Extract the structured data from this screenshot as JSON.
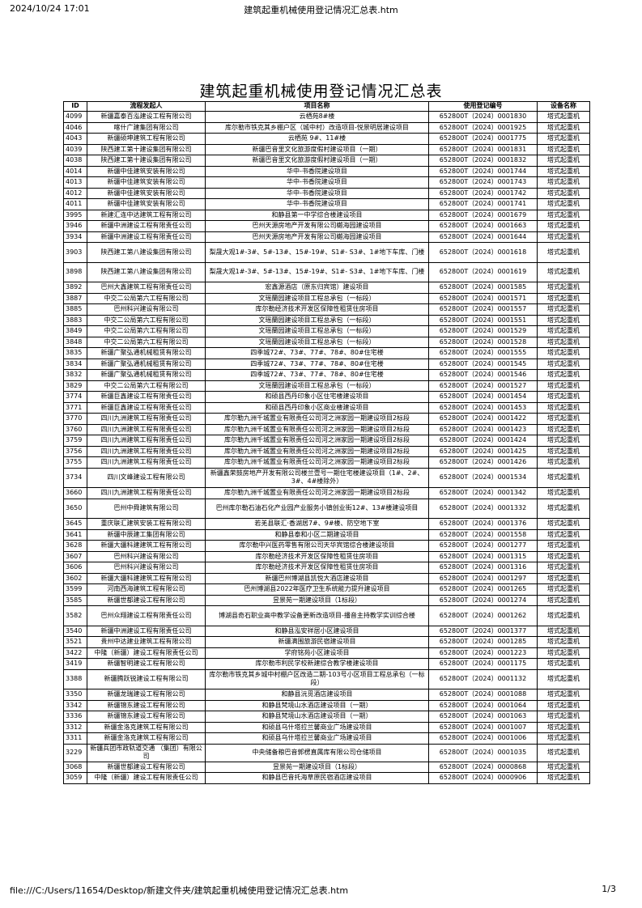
{
  "browser_header": {
    "datetime": "2024/10/24 17:01",
    "page_title": "建筑起重机械使用登记情况汇总表.htm"
  },
  "browser_footer": {
    "url": "file:///C:/Users/11654/Desktop/新建文件夹/建筑起重机械使用登记情况汇总表.htm",
    "page": "1/3"
  },
  "title": "建筑起重机械使用登记情况汇总表",
  "table": {
    "headers": [
      "ID",
      "流程发起人",
      "项目名称",
      "使用登记编号",
      "设备名称"
    ],
    "rows": [
      [
        "4099",
        "新疆嘉泰百泓建设工程有限公司",
        "云栖苑8#楼",
        "652800T（2024）0001830",
        "塔式起重机"
      ],
      [
        "4046",
        "喀什广建集团有限公司",
        "库尔勒市铁克其乡棚户区（城中村）改造项目-悦景明居建设项目",
        "652800T（2024）0001925",
        "塔式起重机"
      ],
      [
        "4043",
        "新疆硕坤建筑工程有限公司",
        "云栖苑 9#、11#楼",
        "652800T（2024）0001775",
        "塔式起重机"
      ],
      [
        "4039",
        "陕西建工第十建设集团有限公司",
        "新疆巴音里文化旅游度假村建设项目（一期）",
        "652800T（2024）0001831",
        "塔式起重机"
      ],
      [
        "4038",
        "陕西建工第十建设集团有限公司",
        "新疆巴音里文化旅游度假村建设项目（一期）",
        "652800T（2024）0001832",
        "塔式起重机"
      ],
      [
        "4014",
        "新疆中佳建筑安装有限公司",
        "华中-书香院建设项目",
        "652800T（2024）0001744",
        "塔式起重机"
      ],
      [
        "4013",
        "新疆中佳建筑安装有限公司",
        "华中-书香院建设项目",
        "652800T（2024）0001743",
        "塔式起重机"
      ],
      [
        "4012",
        "新疆中佳建筑安装有限公司",
        "华中-书香院建设项目",
        "652800T（2024）0001742",
        "塔式起重机"
      ],
      [
        "4011",
        "新疆中佳建筑安装有限公司",
        "华中-书香院建设项目",
        "652800T（2024）0001741",
        "塔式起重机"
      ],
      [
        "3995",
        "新建汇连中达建筑工程有限公司",
        "和静县第一中学综合楼建设项目",
        "652800T（2024）0001679",
        "塔式起重机"
      ],
      [
        "3946",
        "新疆中洲建设工程有限责任公司",
        "巴州天源房地产开发有限公司樾海园建设项目",
        "652800T（2024）0001663",
        "塔式起重机"
      ],
      [
        "3934",
        "新疆中洲建设工程有限责任公司",
        "巴州天源房地产开发有限公司樾海园建设项目",
        "652800T（2024）0001644",
        "塔式起重机"
      ],
      [
        "3903",
        "陕西建工第八建设集团有限公司",
        "梨晟大观1#-3#、5#-13#、15#-19#、S1#- S3#、1#地下车库、门楼",
        "652800T（2024）0001618",
        "塔式起重机"
      ],
      [
        "3898",
        "陕西建工第八建设集团有限公司",
        "梨晟大观1#-3#、5#-13#、15#-19#、S1#- S3#、1#地下车库、门楼",
        "652800T（2024）0001619",
        "塔式起重机"
      ],
      [
        "3892",
        "巴州大鑫建筑工程有限责任公司",
        "宏鑫源酒店（原东归宾馆）建设项目",
        "652800T（2024）0001585",
        "塔式起重机"
      ],
      [
        "3887",
        "中交二公局第六工程有限公司",
        "文瑶蘭园建设项目工程总承包（一标段）",
        "652800T（2024）0001571",
        "塔式起重机"
      ],
      [
        "3885",
        "巴州科兴建设有限公司",
        "库尔勒经济技术开发区保障性租赁住房项目",
        "652800T（2024）0001557",
        "塔式起重机"
      ],
      [
        "3883",
        "中交二公局第六工程有限公司",
        "文瑶蘭园建设项目工程总承包（一标段）",
        "652800T（2024）0001551",
        "塔式起重机"
      ],
      [
        "3849",
        "中交二公局第六工程有限公司",
        "文瑶蘭园建设项目工程总承包（一标段）",
        "652800T（2024）0001529",
        "塔式起重机"
      ],
      [
        "3848",
        "中交二公局第六工程有限公司",
        "文瑶蘭园建设项目工程总承包（一标段）",
        "652800T（2024）0001528",
        "塔式起重机"
      ],
      [
        "3835",
        "新疆广聚弘通机械租赁有限公司",
        "四季城72#、73#、77#、78#、80#住宅楼",
        "652800T（2024）0001555",
        "塔式起重机"
      ],
      [
        "3834",
        "新疆广聚弘通机械租赁有限公司",
        "四季城72#、73#、77#、78#、80#住宅楼",
        "652800T（2024）0001545",
        "塔式起重机"
      ],
      [
        "3832",
        "新疆广聚弘通机械租赁有限公司",
        "四季城72#、73#、77#、78#、80#住宅楼",
        "652800T（2024）0001546",
        "塔式起重机"
      ],
      [
        "3829",
        "中交二公局第六工程有限公司",
        "文瑶蘭园建设项目工程总承包（一标段）",
        "652800T（2024）0001527",
        "塔式起重机"
      ],
      [
        "3774",
        "新疆巨鑫建设工程有限责任公司",
        "和硕县西丹印象小区住宅楼建设项目",
        "652800T（2024）0001454",
        "塔式起重机"
      ],
      [
        "3771",
        "新疆巨鑫建设工程有限责任公司",
        "和硕县西丹印象小区商业楼建设项目",
        "652800T（2024）0001453",
        "塔式起重机"
      ],
      [
        "3770",
        "四川九洲建筑工程有限责任公司",
        "库尔勒九洲千城置业有限责任公司河之洲家园一期建设项目2标段",
        "652800T（2024）0001422",
        "塔式起重机"
      ],
      [
        "3760",
        "四川九洲建筑工程有限责任公司",
        "库尔勒九洲千城置业有限责任公司河之洲家园一期建设项目2标段",
        "652800T（2024）0001423",
        "塔式起重机"
      ],
      [
        "3759",
        "四川九洲建筑工程有限责任公司",
        "库尔勒九洲千城置业有限责任公司河之洲家园一期建设项目2标段",
        "652800T（2024）0001424",
        "塔式起重机"
      ],
      [
        "3756",
        "四川九洲建筑工程有限责任公司",
        "库尔勒九洲千城置业有限责任公司河之洲家园一期建设项目2标段",
        "652800T（2024）0001425",
        "塔式起重机"
      ],
      [
        "3755",
        "四川九洲建筑工程有限责任公司",
        "库尔勒九洲千城置业有限责任公司河之洲家园一期建设项目2标段",
        "652800T（2024）0001426",
        "塔式起重机"
      ],
      [
        "3734",
        "四川文峰建设工程有限公司",
        "新疆鑫荣鼓房地产开发有限公司楼兰壹号一期住宅楼建设项目（1#、2#、3#、4#楼除外）",
        "652800T（2024）0001534",
        "塔式起重机"
      ],
      [
        "3660",
        "四川九洲建筑工程有限责任公司",
        "库尔勒九洲千城置业有限责任公司河之洲家园一期建设项目2标段",
        "652800T（2024）0001342",
        "塔式起重机"
      ],
      [
        "3650",
        "巴州中舜建筑有限公司",
        "巴州库尔勒石油石化产业园产业服务小镇创业街12#、13#楼建设项目",
        "652800T（2024）0001332",
        "塔式起重机"
      ],
      [
        "3645",
        "重庆联汇建筑安装工程有限公司",
        "若羌县联汇·香湖居7#、9#楼、防空地下室",
        "652800T（2024）0001376",
        "塔式起重机"
      ],
      [
        "3641",
        "新疆中辰建工集团有限公司",
        "和静县泰和小区二期建设项目",
        "652800T（2024）0001558",
        "塔式起重机"
      ],
      [
        "3628",
        "新疆大疆科建建筑工程有限公司",
        "库尔勒中兴医药零售有限公司天华宾馆综合楼建设项目",
        "652800T（2024）0001277",
        "塔式起重机"
      ],
      [
        "3607",
        "巴州科兴建设有限公司",
        "库尔勒经济技术开发区保障性租赁住房项目",
        "652800T（2024）0001315",
        "塔式起重机"
      ],
      [
        "3606",
        "巴州科兴建设有限公司",
        "库尔勒经济技术开发区保障性租赁住房项目",
        "652800T（2024）0001316",
        "塔式起重机"
      ],
      [
        "3602",
        "新疆大疆科建建筑工程有限公司",
        "新疆巴州博湖县凯悦大酒店建设项目",
        "652800T（2024）0001297",
        "塔式起重机"
      ],
      [
        "3599",
        "河南西海建筑工程有限公司",
        "巴州博湖县2022年医疗卫生系统能力提升建设项目",
        "652800T（2024）0001265",
        "塔式起重机"
      ],
      [
        "3585",
        "新疆世都建设工程有限公司",
        "昱景苑一期建设项目（1标段）",
        "652800T（2024）0001274",
        "塔式起重机"
      ],
      [
        "3582",
        "巴州众翔建设工程有限责任公司",
        "博湖县奇石职业高中教学设备更新改造项目-播音主持教学实训综合楼",
        "652800T（2024）0001262",
        "塔式起重机"
      ],
      [
        "3540",
        "新疆中洲建设工程有限责任公司",
        "和静县泓安祥居小区建设项目",
        "652800T（2024）0001377",
        "塔式起重机"
      ],
      [
        "3521",
        "贵州中达建业建筑工程有限公司",
        "新疆满围旅游民宿建设项目",
        "652800T（2024）0001285",
        "塔式起重机"
      ],
      [
        "3422",
        "中隆（新疆）建设工程有限责任公司",
        "学府铭苑小区建设项目",
        "652800T（2024）0001223",
        "塔式起重机"
      ],
      [
        "3419",
        "新疆智明建设工程有限公司",
        "库尔勒市利民学校新建综合教学楼建设项目",
        "652800T（2024）0001175",
        "塔式起重机"
      ],
      [
        "3388",
        "新疆腾跃锐建设工程有限公司",
        "库尔勒市铁克其乡城中村棚户区改造二期-103号小区项目工程总承包（一标段）",
        "652800T（2024）0001132",
        "塔式起重机"
      ],
      [
        "3350",
        "新疆龙瑞建设工程有限公司",
        "和静县沅觅酒店建设项目",
        "652800T（2024）0001088",
        "塔式起重机"
      ],
      [
        "3342",
        "新疆锦东建设工程有限公司",
        "和静县梵境山水酒店建设项目（一期）",
        "652800T（2024）0001064",
        "塔式起重机"
      ],
      [
        "3336",
        "新疆锦东建设工程有限公司",
        "和静县梵境山水酒店建设项目（一期）",
        "652800T（2024）0001063",
        "塔式起重机"
      ],
      [
        "3312",
        "新疆金洛克建筑工程有限公司",
        "和硕县乌什塔拉兰馨商业广场建设项目",
        "652800T（2024）0001007",
        "塔式起重机"
      ],
      [
        "3311",
        "新疆金洛克建筑工程有限公司",
        "和硕县乌什塔拉兰馨商业广场建设项目",
        "652800T（2024）0001006",
        "塔式起重机"
      ],
      [
        "3229",
        "新疆兵团市政轨道交通 （集团）有限公司",
        "中央储备粮巴音郭楞直属库有限公司仓储项目",
        "652800T（2024）0001035",
        "塔式起重机"
      ],
      [
        "3068",
        "新疆世都建设工程有限公司",
        "昱景苑一期建设项目（1标段）",
        "652800T（2024）0000868",
        "塔式起重机"
      ],
      [
        "3059",
        "中隆（新疆）建设工程有限责任公司",
        "和静县巴音托海草原民宿酒店建设项目",
        "652800T（2024）0000906",
        "塔式起重机"
      ]
    ]
  }
}
